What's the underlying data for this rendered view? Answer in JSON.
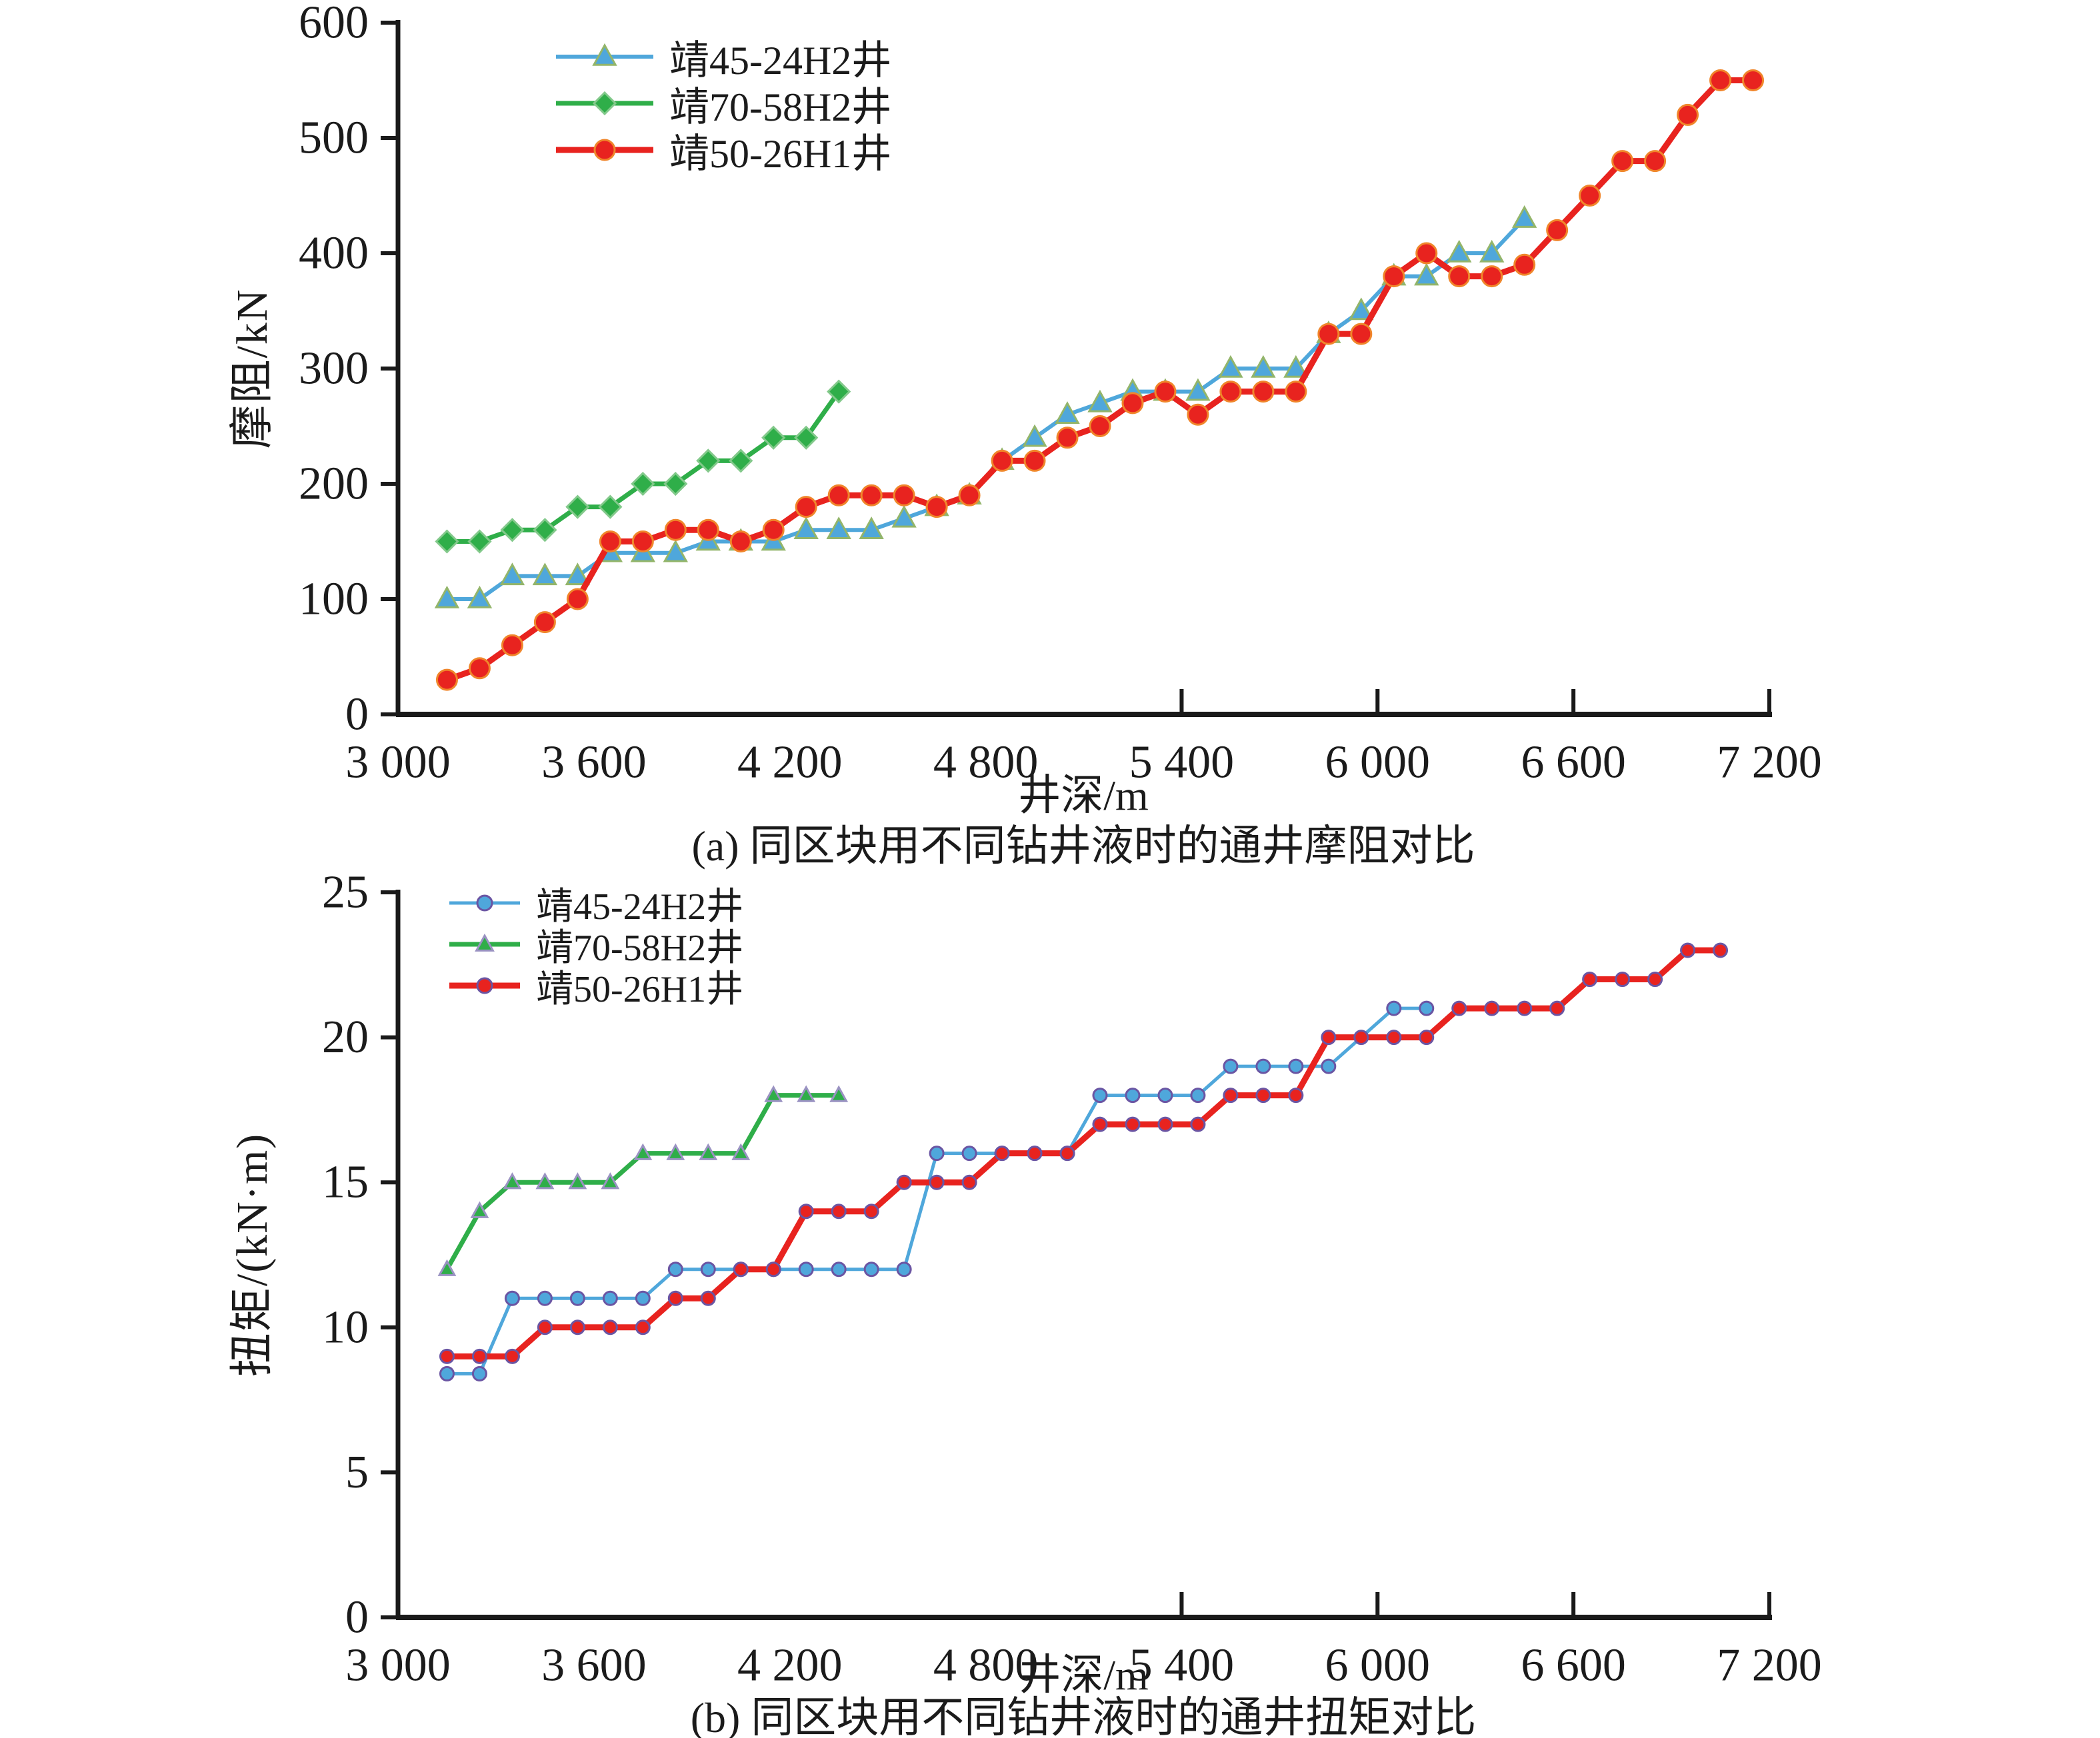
{
  "page_background": "#ffffff",
  "text_color": "#1b1b1b",
  "axis_color": "#1a1a1a",
  "chart_data": {
    "type": "line",
    "charts": [
      {
        "id": "a",
        "caption": "(a) 同区块用不同钻井液时的通井摩阻对比",
        "xlabel": "井深/m",
        "ylabel": "摩阻/kN",
        "xlim": [
          3000,
          7200
        ],
        "ylim": [
          0,
          600
        ],
        "grid": false,
        "legend_position": "top-left-inside",
        "xticks": [
          {
            "v": 3000,
            "label": "3 000"
          },
          {
            "v": 3600,
            "label": "3 600"
          },
          {
            "v": 4200,
            "label": "4 200"
          },
          {
            "v": 4800,
            "label": "4 800"
          },
          {
            "v": 5400,
            "label": "5 400"
          },
          {
            "v": 6000,
            "label": "6 000"
          },
          {
            "v": 6600,
            "label": "6 600"
          },
          {
            "v": 7200,
            "label": "7 200"
          }
        ],
        "xticks_inside": [
          5400,
          6000,
          6600,
          7200
        ],
        "yticks": [
          {
            "v": 0,
            "label": "0"
          },
          {
            "v": 100,
            "label": "100"
          },
          {
            "v": 200,
            "label": "200"
          },
          {
            "v": 300,
            "label": "300"
          },
          {
            "v": 400,
            "label": "400"
          },
          {
            "v": 500,
            "label": "500"
          },
          {
            "v": 600,
            "label": "600"
          }
        ],
        "series": [
          {
            "name": "靖45-24H2井",
            "color": "#4FA7DB",
            "marker": "triangle",
            "marker_edge": "#93B56A",
            "marker_size": 17,
            "line_width": 6,
            "points": [
              [
                3150,
                100
              ],
              [
                3250,
                100
              ],
              [
                3350,
                120
              ],
              [
                3450,
                120
              ],
              [
                3550,
                120
              ],
              [
                3650,
                140
              ],
              [
                3750,
                140
              ],
              [
                3850,
                140
              ],
              [
                3950,
                150
              ],
              [
                4050,
                150
              ],
              [
                4150,
                150
              ],
              [
                4250,
                160
              ],
              [
                4350,
                160
              ],
              [
                4450,
                160
              ],
              [
                4550,
                170
              ],
              [
                4650,
                180
              ],
              [
                4750,
                190
              ],
              [
                4850,
                220
              ],
              [
                4950,
                240
              ],
              [
                5050,
                260
              ],
              [
                5150,
                270
              ],
              [
                5250,
                280
              ],
              [
                5350,
                280
              ],
              [
                5450,
                280
              ],
              [
                5550,
                300
              ],
              [
                5650,
                300
              ],
              [
                5750,
                300
              ],
              [
                5850,
                330
              ],
              [
                5950,
                350
              ],
              [
                6050,
                380
              ],
              [
                6150,
                380
              ],
              [
                6250,
                400
              ],
              [
                6350,
                400
              ],
              [
                6450,
                430
              ]
            ]
          },
          {
            "name": "靖70-58H2井",
            "color": "#2FAE49",
            "marker": "diamond",
            "marker_edge": "#83C98B",
            "marker_size": 16,
            "line_width": 7,
            "points": [
              [
                3150,
                150
              ],
              [
                3250,
                150
              ],
              [
                3350,
                160
              ],
              [
                3450,
                160
              ],
              [
                3550,
                180
              ],
              [
                3650,
                180
              ],
              [
                3750,
                200
              ],
              [
                3850,
                200
              ],
              [
                3950,
                220
              ],
              [
                4050,
                220
              ],
              [
                4150,
                240
              ],
              [
                4250,
                240
              ],
              [
                4350,
                280
              ]
            ]
          },
          {
            "name": "靖50-26H1井",
            "color": "#E8231F",
            "marker": "circle",
            "marker_edge": "#F0862B",
            "marker_size": 15,
            "line_width": 9,
            "points": [
              [
                3150,
                30
              ],
              [
                3250,
                40
              ],
              [
                3350,
                60
              ],
              [
                3450,
                80
              ],
              [
                3550,
                100
              ],
              [
                3650,
                150
              ],
              [
                3750,
                150
              ],
              [
                3850,
                160
              ],
              [
                3950,
                160
              ],
              [
                4050,
                150
              ],
              [
                4150,
                160
              ],
              [
                4250,
                180
              ],
              [
                4350,
                190
              ],
              [
                4450,
                190
              ],
              [
                4550,
                190
              ],
              [
                4650,
                180
              ],
              [
                4750,
                190
              ],
              [
                4850,
                220
              ],
              [
                4950,
                220
              ],
              [
                5050,
                240
              ],
              [
                5150,
                250
              ],
              [
                5250,
                270
              ],
              [
                5350,
                280
              ],
              [
                5450,
                260
              ],
              [
                5550,
                280
              ],
              [
                5650,
                280
              ],
              [
                5750,
                280
              ],
              [
                5850,
                330
              ],
              [
                5950,
                330
              ],
              [
                6050,
                380
              ],
              [
                6150,
                400
              ],
              [
                6250,
                380
              ],
              [
                6350,
                380
              ],
              [
                6450,
                390
              ],
              [
                6550,
                420
              ],
              [
                6650,
                450
              ],
              [
                6750,
                480
              ],
              [
                6850,
                480
              ],
              [
                6950,
                520
              ],
              [
                7050,
                550
              ],
              [
                7150,
                550
              ]
            ]
          }
        ]
      },
      {
        "id": "b",
        "caption": "(b) 同区块用不同钻井液时的通井扭矩对比",
        "xlabel": "井深/m",
        "ylabel": "扭矩/(kN·m)",
        "xlim": [
          3000,
          7200
        ],
        "ylim": [
          0,
          25
        ],
        "grid": false,
        "legend_position": "top-left-inside",
        "xticks": [
          {
            "v": 3000,
            "label": "3 000"
          },
          {
            "v": 3600,
            "label": "3 600"
          },
          {
            "v": 4200,
            "label": "4 200"
          },
          {
            "v": 4800,
            "label": "4 800"
          },
          {
            "v": 5400,
            "label": "5 400"
          },
          {
            "v": 6000,
            "label": "6 000"
          },
          {
            "v": 6600,
            "label": "6 600"
          },
          {
            "v": 7200,
            "label": "7 200"
          }
        ],
        "xticks_inside": [
          5400,
          6000,
          6600,
          7200
        ],
        "yticks": [
          {
            "v": 0,
            "label": "0"
          },
          {
            "v": 5,
            "label": "5"
          },
          {
            "v": 10,
            "label": "10"
          },
          {
            "v": 15,
            "label": "15"
          },
          {
            "v": 20,
            "label": "20"
          },
          {
            "v": 25,
            "label": "25"
          }
        ],
        "series": [
          {
            "name": "靖45-24H2井",
            "color": "#4FA7DB",
            "marker": "circle",
            "marker_edge": "#6A55A3",
            "marker_size": 10,
            "line_width": 5,
            "points": [
              [
                3150,
                8.4
              ],
              [
                3250,
                8.4
              ],
              [
                3350,
                11
              ],
              [
                3450,
                11
              ],
              [
                3550,
                11
              ],
              [
                3650,
                11
              ],
              [
                3750,
                11
              ],
              [
                3850,
                12
              ],
              [
                3950,
                12
              ],
              [
                4050,
                12
              ],
              [
                4150,
                12
              ],
              [
                4250,
                12
              ],
              [
                4350,
                12
              ],
              [
                4450,
                12
              ],
              [
                4550,
                12
              ],
              [
                4650,
                16
              ],
              [
                4750,
                16
              ],
              [
                4850,
                16
              ],
              [
                4950,
                16
              ],
              [
                5050,
                16
              ],
              [
                5150,
                18
              ],
              [
                5250,
                18
              ],
              [
                5350,
                18
              ],
              [
                5450,
                18
              ],
              [
                5550,
                19
              ],
              [
                5650,
                19
              ],
              [
                5750,
                19
              ],
              [
                5850,
                19
              ],
              [
                6050,
                21
              ],
              [
                6150,
                21
              ]
            ]
          },
          {
            "name": "靖70-58H2井",
            "color": "#2FAE49",
            "marker": "triangle",
            "marker_edge": "#9A92C2",
            "marker_size": 12,
            "line_width": 7,
            "points": [
              [
                3150,
                12
              ],
              [
                3250,
                14
              ],
              [
                3350,
                15
              ],
              [
                3450,
                15
              ],
              [
                3550,
                15
              ],
              [
                3650,
                15
              ],
              [
                3750,
                16
              ],
              [
                3850,
                16
              ],
              [
                3950,
                16
              ],
              [
                4050,
                16
              ],
              [
                4150,
                18
              ],
              [
                4250,
                18
              ],
              [
                4350,
                18
              ]
            ]
          },
          {
            "name": "靖50-26H1井",
            "color": "#E8231F",
            "marker": "circle",
            "marker_edge": "#6A55A3",
            "marker_size": 10,
            "line_width": 9,
            "points": [
              [
                3150,
                9
              ],
              [
                3250,
                9
              ],
              [
                3350,
                9
              ],
              [
                3450,
                10
              ],
              [
                3550,
                10
              ],
              [
                3650,
                10
              ],
              [
                3750,
                10
              ],
              [
                3850,
                11
              ],
              [
                3950,
                11
              ],
              [
                4050,
                12
              ],
              [
                4150,
                12
              ],
              [
                4250,
                14
              ],
              [
                4350,
                14
              ],
              [
                4450,
                14
              ],
              [
                4550,
                15
              ],
              [
                4650,
                15
              ],
              [
                4750,
                15
              ],
              [
                4850,
                16
              ],
              [
                4950,
                16
              ],
              [
                5050,
                16
              ],
              [
                5150,
                17
              ],
              [
                5250,
                17
              ],
              [
                5350,
                17
              ],
              [
                5450,
                17
              ],
              [
                5550,
                18
              ],
              [
                5650,
                18
              ],
              [
                5750,
                18
              ],
              [
                5850,
                20
              ],
              [
                5950,
                20
              ],
              [
                6050,
                20
              ],
              [
                6150,
                20
              ],
              [
                6250,
                21
              ],
              [
                6350,
                21
              ],
              [
                6450,
                21
              ],
              [
                6550,
                21
              ],
              [
                6650,
                22
              ],
              [
                6750,
                22
              ],
              [
                6850,
                22
              ],
              [
                6950,
                23
              ],
              [
                7050,
                23
              ]
            ]
          }
        ]
      }
    ]
  }
}
